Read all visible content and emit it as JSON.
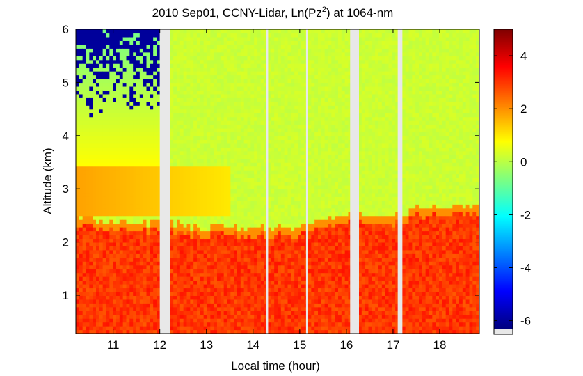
{
  "chart_data": {
    "type": "heatmap",
    "title_text": "2010 Sep01, CCNY-Lidar, Ln(Pz",
    "title_sup": "2",
    "title_suffix": ") at 1064-nm",
    "xlabel": "Local time (hour)",
    "ylabel": "Altitude (km)",
    "xlim": [
      10.2,
      18.85
    ],
    "ylim": [
      0.28,
      6.0
    ],
    "xticks": [
      11,
      12,
      13,
      14,
      15,
      16,
      17,
      18
    ],
    "yticks": [
      1,
      2,
      3,
      4,
      5,
      6
    ],
    "colorbar": {
      "range": [
        -6.3,
        5.0
      ],
      "ticks": [
        4,
        2,
        0,
        -2,
        -4,
        -6
      ],
      "tick_labels": [
        "4",
        "2",
        "0",
        "-2",
        "-4",
        "-6"
      ],
      "colormap": "jet",
      "nodata_color": "#e8e8e8"
    },
    "nodata_intervals": [
      [
        12.0,
        12.22
      ],
      [
        16.08,
        16.27
      ],
      [
        17.1,
        17.2
      ]
    ],
    "thin_gaps": [
      14.3,
      15.15
    ],
    "boundary_layer_top_km": [
      {
        "t": 10.2,
        "z": 2.45
      },
      {
        "t": 11.0,
        "z": 2.4
      },
      {
        "t": 12.0,
        "z": 2.35
      },
      {
        "t": 13.0,
        "z": 2.3
      },
      {
        "t": 14.0,
        "z": 2.25
      },
      {
        "t": 15.0,
        "z": 2.3
      },
      {
        "t": 15.5,
        "z": 2.45
      },
      {
        "t": 16.0,
        "z": 2.55
      },
      {
        "t": 17.0,
        "z": 2.5
      },
      {
        "t": 17.5,
        "z": 2.65
      },
      {
        "t": 18.0,
        "z": 2.7
      },
      {
        "t": 18.85,
        "z": 2.65
      }
    ],
    "residual_layer": {
      "t_start": 10.2,
      "t_end": 13.5,
      "z_bottom": 2.5,
      "z_top": 3.4,
      "value": 1.8
    },
    "free_troposphere_value": 0.2,
    "boundary_layer_value": 3.0,
    "noise_region": {
      "t_start": 10.2,
      "t_end": 12.0,
      "z_bottom": 4.3,
      "z_top": 6.0,
      "value": -6.0
    }
  }
}
